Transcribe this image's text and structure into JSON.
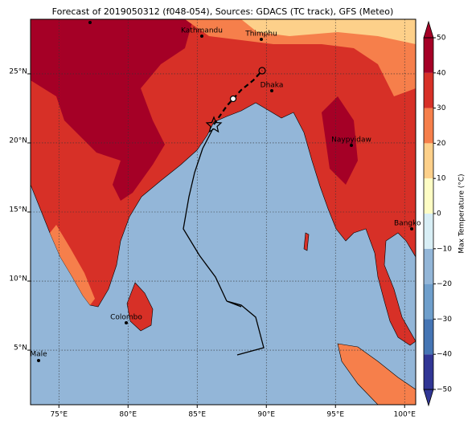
{
  "title": "Forecast of 2019050312 (f048-054), Sources: GDACS (TC track), GFS (Meteo)",
  "map": {
    "lon_range": [
      72.95,
      100.8
    ],
    "lat_range": [
      1.05,
      28.95
    ],
    "lon_ticks": [
      {
        "value": 75,
        "label": "75°E"
      },
      {
        "value": 80,
        "label": "80°E"
      },
      {
        "value": 85,
        "label": "85°E"
      },
      {
        "value": 90,
        "label": "90°E"
      },
      {
        "value": 95,
        "label": "95°E"
      },
      {
        "value": 100,
        "label": "100°E"
      }
    ],
    "lat_ticks": [
      {
        "value": 5,
        "label": "5°N"
      },
      {
        "value": 10,
        "label": "10°N"
      },
      {
        "value": 15,
        "label": "15°N"
      },
      {
        "value": 20,
        "label": "20°N"
      },
      {
        "value": 25,
        "label": "25°N"
      }
    ],
    "cities": [
      "Kathmandu",
      "Thimphu",
      "Dhaka",
      "Naypyidaw",
      "Bangko",
      "Colombo",
      "Male"
    ]
  },
  "colorbar": {
    "label": "Max Temperature (°C)",
    "range": [
      -50,
      50
    ],
    "ticks": [
      {
        "value": -50,
        "label": "−50"
      },
      {
        "value": -40,
        "label": "−40"
      },
      {
        "value": -30,
        "label": "−30"
      },
      {
        "value": -20,
        "label": "−20"
      },
      {
        "value": -10,
        "label": "−10"
      },
      0,
      10,
      20,
      30,
      40,
      50
    ],
    "colors": [
      "#313695",
      "#4575b4",
      "#6f9fcc",
      "#93b6d8",
      "#d8eef5",
      "#fefdc4",
      "#fdd08a",
      "#f67f4b",
      "#d73027",
      "#a50026"
    ]
  }
}
